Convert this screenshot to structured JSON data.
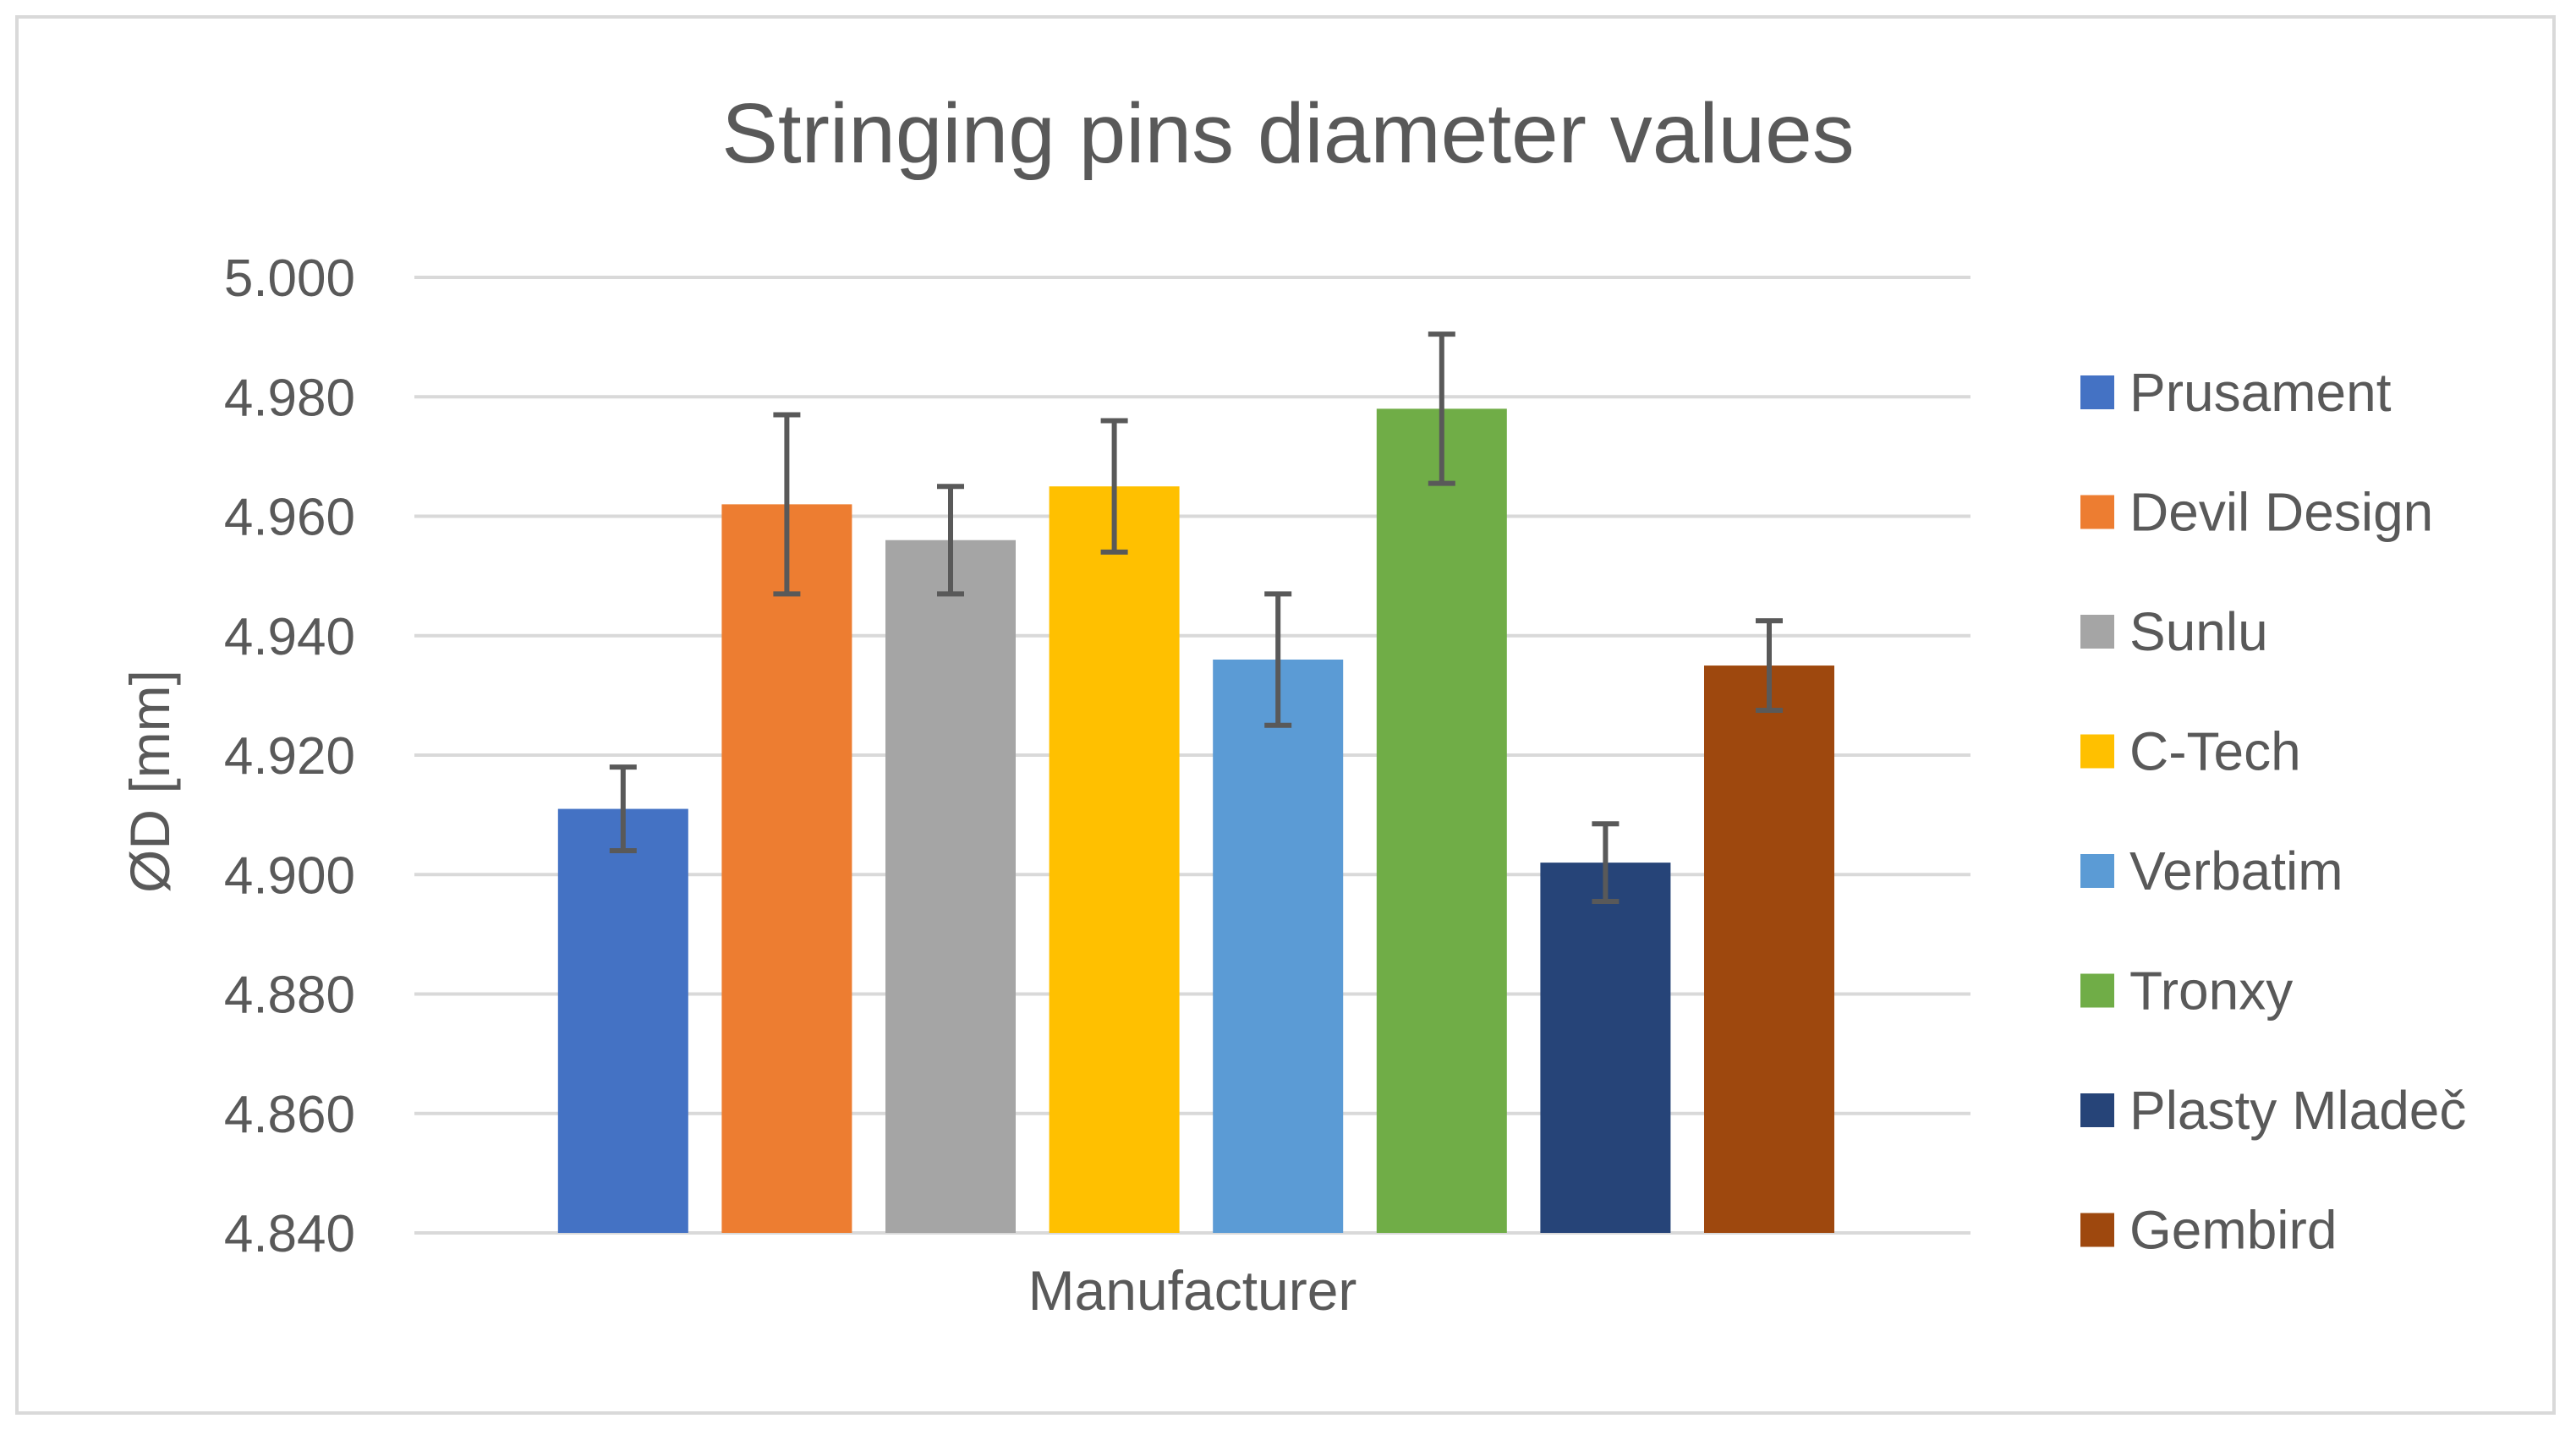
{
  "chart_data": {
    "type": "bar",
    "title": "Stringing pins diameter values",
    "xlabel": "Manufacturer",
    "ylabel": "ØD [mm]",
    "ylim": [
      4.84,
      5.0
    ],
    "yticks": [
      "4.840",
      "4.860",
      "4.880",
      "4.900",
      "4.920",
      "4.940",
      "4.960",
      "4.980",
      "5.000"
    ],
    "grid": true,
    "legend_position": "right",
    "series": [
      {
        "name": "Prusament",
        "value": 4.911,
        "error": 0.007,
        "color": "#4472C4"
      },
      {
        "name": "Devil Design",
        "value": 4.962,
        "error": 0.015,
        "color": "#ED7D31"
      },
      {
        "name": "Sunlu",
        "value": 4.956,
        "error": 0.009,
        "color": "#A5A5A5"
      },
      {
        "name": "C-Tech",
        "value": 4.965,
        "error": 0.011,
        "color": "#FFC000"
      },
      {
        "name": "Verbatim",
        "value": 4.936,
        "error": 0.011,
        "color": "#5B9BD5"
      },
      {
        "name": "Tronxy",
        "value": 4.978,
        "error": 0.0125,
        "color": "#70AD47"
      },
      {
        "name": "Plasty Mladeč",
        "value": 4.902,
        "error": 0.0065,
        "color": "#264478"
      },
      {
        "name": "Gembird",
        "value": 4.935,
        "error": 0.0075,
        "color": "#9E480E"
      }
    ]
  }
}
